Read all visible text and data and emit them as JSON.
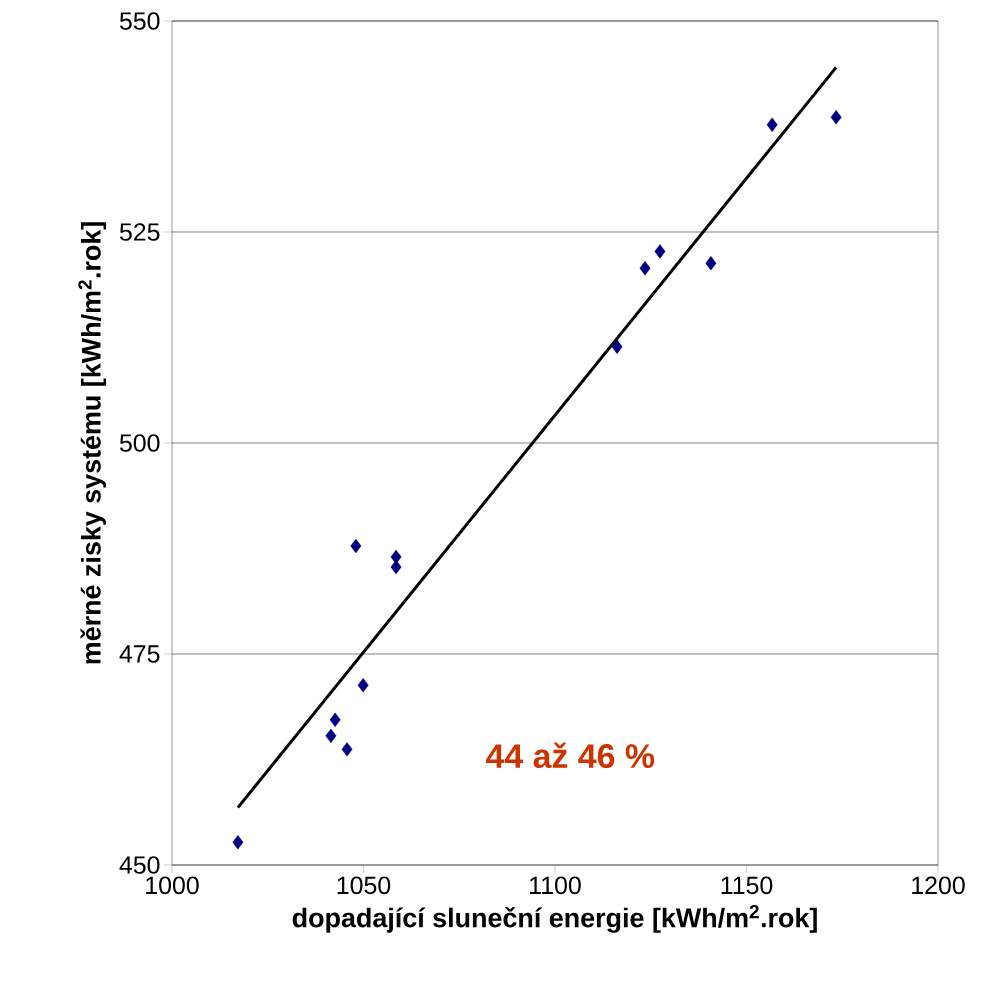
{
  "chart_data": {
    "type": "scatter",
    "xlabel": "dopadající sluneční energie [kWh/m$^{2}$.rok]",
    "ylabel": "měrné zisky systému [kWh/m$^{2}$.rok]",
    "annotations": [
      "44 až 46 %"
    ],
    "series": [
      {
        "color": "#000080",
        "marker": "diamond",
        "x": [
          1017.2,
          1041.5,
          1042.6,
          1045.7,
          1049.9,
          1048.0,
          1058.5,
          1058.5,
          1116.2,
          1123.5,
          1127.4,
          1140.7,
          1156.7,
          1173.4
        ],
        "values": [
          452.7,
          465.3,
          467.2,
          463.7,
          471.3,
          487.8,
          486.5,
          485.3,
          511.4,
          520.7,
          522.7,
          521.3,
          537.7,
          538.6
        ]
      },
      {
        "type": "line",
        "color": "#000000",
        "marker": "none",
        "line_style": "solid",
        "x": [
          1017.2,
          1173.4
        ],
        "values": [
          456.8,
          544.5
        ]
      }
    ],
    "xlim": [
      1000,
      1200
    ],
    "xticks": [
      1000,
      1050,
      1100,
      1150,
      1200
    ],
    "ylim": [
      450,
      550
    ],
    "yticks": [
      450,
      475,
      500,
      525,
      550
    ],
    "grid": "y"
  }
}
